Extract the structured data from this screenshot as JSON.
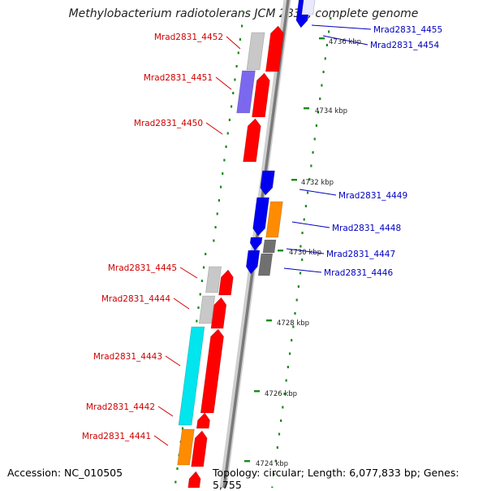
{
  "title": "Methylobacterium radiotolerans JCM 2831, complete genome",
  "footer": {
    "accession": "Accession: NC_010505",
    "topology": "Topology: circular; Length: 6,077,833 bp; Genes: 5,755"
  },
  "colors": {
    "forward_label": "#d00000",
    "reverse_label": "#0000c0",
    "forward_gene": "#ff0000",
    "reverse_gene": "#0000ee",
    "orange": "#ff8c00",
    "cyan": "#00e5ee",
    "purple": "#7b68ee",
    "grey": "#c8c8c8",
    "dark_grey": "#707070",
    "tick_mark": "#1a8a1a"
  },
  "scale_ticks": [
    "4736 kbp",
    "4734 kbp",
    "4732 kbp",
    "4730 kbp",
    "4728 kbp",
    "4726 kbp",
    "4724 kbp"
  ],
  "genes_left": [
    "Mrad2831_4452",
    "Mrad2831_4451",
    "Mrad2831_4450",
    "Mrad2831_4445",
    "Mrad2831_4444",
    "Mrad2831_4443",
    "Mrad2831_4442",
    "Mrad2831_4441"
  ],
  "genes_right": [
    "Mrad2831_4455",
    "Mrad2831_4454",
    "Mrad2831_4449",
    "Mrad2831_4448",
    "Mrad2831_4447",
    "Mrad2831_4446"
  ]
}
